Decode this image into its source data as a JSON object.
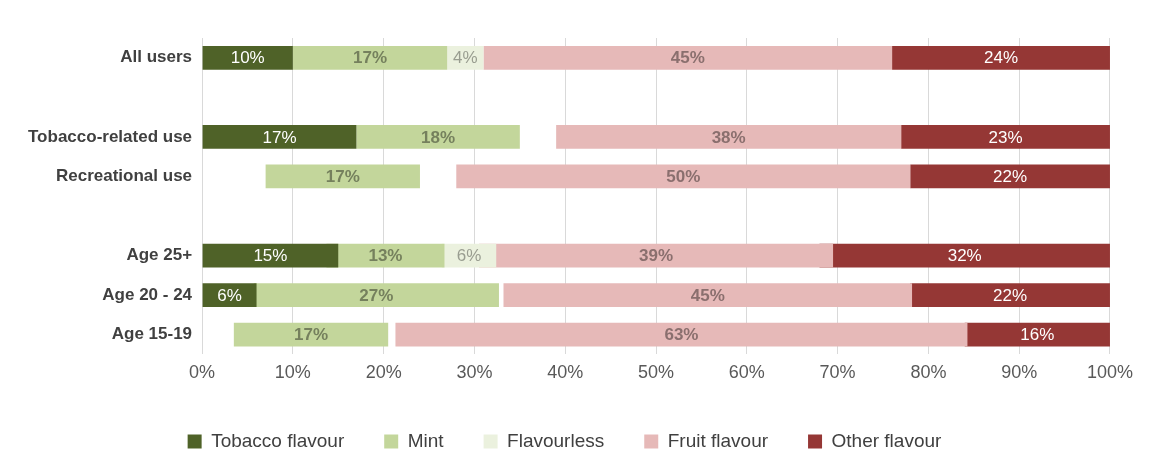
{
  "chart_data": {
    "type": "bar",
    "orientation": "horizontal",
    "categories": [
      "All users",
      null,
      "Tobacco-related use",
      "Recreational use",
      null,
      "Age 25+",
      "Age 20 - 24",
      "Age 15-19"
    ],
    "series": [
      {
        "name": "Tobacco flavour",
        "color": "#4f6228",
        "values": [
          10,
          null,
          17,
          null,
          null,
          15,
          6,
          null
        ],
        "base": [
          0,
          null,
          0,
          null,
          null,
          0,
          0,
          null
        ],
        "value_labels": [
          "10%",
          null,
          "17%",
          null,
          null,
          "15%",
          "6%",
          null
        ]
      },
      {
        "name": "Mint",
        "color": "#c3d69b",
        "values": [
          17,
          null,
          18,
          17,
          null,
          13,
          27,
          17
        ],
        "base": [
          10,
          null,
          17,
          7,
          null,
          13.7,
          5.7,
          3.5
        ],
        "value_labels": [
          "17%",
          null,
          "18%",
          "17%",
          null,
          "13%",
          "27%",
          "17%"
        ]
      },
      {
        "name": "Flavourless",
        "color": "#ebf1de",
        "values": [
          4,
          null,
          null,
          null,
          null,
          6,
          null,
          null
        ],
        "base": [
          27,
          null,
          null,
          null,
          null,
          26.4,
          null,
          null
        ],
        "value_labels": [
          "4%",
          null,
          null,
          null,
          null,
          "6%",
          null,
          null
        ]
      },
      {
        "name": "Fruit flavour",
        "color": "#e6b9b8",
        "values": [
          45,
          null,
          38,
          50,
          null,
          39,
          45,
          63
        ],
        "base": [
          31,
          null,
          39,
          28,
          null,
          30.5,
          33.2,
          21.3
        ],
        "value_labels": [
          "45%",
          null,
          "38%",
          "50%",
          null,
          "39%",
          "45%",
          "63%"
        ]
      },
      {
        "name": "Other flavour",
        "color": "#953735",
        "values": [
          24,
          null,
          23,
          22,
          null,
          32,
          22,
          16
        ],
        "base": [
          76,
          null,
          77,
          78,
          null,
          68,
          78,
          84
        ],
        "value_labels": [
          "24%",
          null,
          "23%",
          "22%",
          null,
          "32%",
          "22%",
          "16%"
        ]
      }
    ],
    "xlim": [
      0,
      100
    ],
    "xticks": [
      {
        "value": 0,
        "label": "0%"
      },
      {
        "value": 10,
        "label": "10%"
      },
      {
        "value": 20,
        "label": "20%"
      },
      {
        "value": 30,
        "label": "30%"
      },
      {
        "value": 40,
        "label": "40%"
      },
      {
        "value": 50,
        "label": "50%"
      },
      {
        "value": 60,
        "label": "60%"
      },
      {
        "value": 70,
        "label": "70%"
      },
      {
        "value": 80,
        "label": "80%"
      },
      {
        "value": 90,
        "label": "90%"
      },
      {
        "value": 100,
        "label": "100%"
      }
    ],
    "grid": "x",
    "legend": "bottom"
  }
}
